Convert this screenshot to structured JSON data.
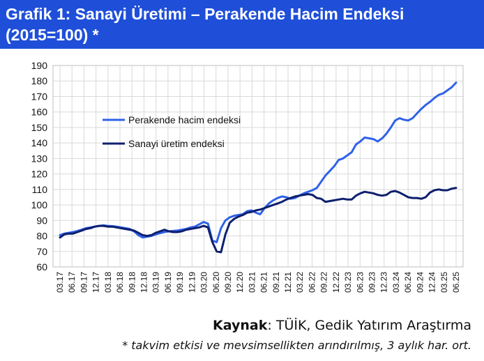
{
  "title": {
    "line1": "Grafik 1: Sanayi Üretimi – Perakende Hacim Endeksi",
    "line2": "(2015=100) *"
  },
  "source": {
    "label": "Kaynak",
    "text": ": TÜİK, Gedik Yatırım Araştırma"
  },
  "note": "* takvim etkisi ve mevsimsellikten arındırılmış, 3 aylık har. ort.",
  "colors": {
    "title_bg": "#1f4fd8",
    "retail": "#2f62e8",
    "industry": "#0d1f6e",
    "grid": "#d9d9d9"
  },
  "chart_data": {
    "type": "line",
    "ylim": [
      60,
      190
    ],
    "yticks": [
      60,
      70,
      80,
      90,
      100,
      110,
      120,
      130,
      140,
      150,
      160,
      170,
      180,
      190
    ],
    "grid": true,
    "legend_position": "upper-left inside plot",
    "x_tick_labels": [
      "03.17",
      "06.17",
      "09.17",
      "12.17",
      "03.18",
      "06.18",
      "09.18",
      "12.18",
      "03.19",
      "06.19",
      "09.19",
      "12.19",
      "03.20",
      "06.20",
      "09.20",
      "12.20",
      "03.21",
      "06.21",
      "09.21",
      "12.21",
      "03.22",
      "06.22",
      "09.22",
      "12.22",
      "03.23",
      "06.23",
      "09.23",
      "12.23",
      "03.24",
      "06.24",
      "09.24",
      "12.24",
      "03.25",
      "06.25"
    ],
    "series": [
      {
        "name": "Perakende hacim endeksi",
        "color": "#2f62e8",
        "values": [
          80.5,
          81.5,
          82.0,
          82.5,
          83.2,
          84.0,
          85.0,
          85.5,
          86.0,
          86.5,
          86.8,
          86.5,
          86.3,
          86.0,
          85.5,
          85.0,
          84.5,
          83.0,
          80.5,
          79.0,
          79.5,
          80.0,
          81.0,
          81.8,
          82.5,
          83.0,
          83.2,
          83.5,
          84.0,
          84.5,
          85.5,
          86.0,
          87.5,
          89.0,
          88.0,
          77.0,
          76.0,
          85.0,
          90.0,
          92.0,
          93.0,
          93.5,
          94.0,
          96.0,
          96.5,
          95.0,
          94.0,
          98.0,
          101.0,
          103.0,
          104.5,
          105.5,
          105.0,
          104.0,
          104.5,
          106.0,
          107.5,
          108.5,
          109.5,
          111.0,
          115.0,
          119.0,
          122.0,
          125.0,
          129.0,
          130.0,
          132.0,
          134.0,
          139.0,
          141.0,
          143.5,
          143.0,
          142.5,
          141.0,
          143.0,
          146.0,
          150.0,
          154.5,
          156.0,
          155.0,
          154.5,
          156.0,
          159.0,
          162.0,
          164.5,
          166.5,
          169.0,
          171.0,
          172.0,
          174.0,
          176.0,
          179.0
        ]
      },
      {
        "name": "Sanayi üretim endeksi",
        "color": "#0d1f6e",
        "values": [
          79.0,
          81.0,
          81.5,
          81.5,
          82.5,
          83.5,
          84.5,
          85.0,
          86.0,
          86.5,
          86.5,
          86.0,
          86.0,
          85.5,
          85.0,
          84.5,
          84.0,
          83.5,
          82.0,
          80.5,
          80.0,
          80.5,
          82.0,
          83.0,
          84.0,
          83.0,
          82.5,
          82.5,
          83.0,
          84.0,
          84.5,
          85.0,
          85.5,
          86.5,
          85.5,
          76.0,
          70.0,
          69.5,
          81.0,
          88.5,
          91.0,
          92.5,
          93.5,
          95.0,
          95.5,
          96.5,
          97.0,
          98.0,
          99.0,
          100.0,
          101.0,
          102.0,
          103.5,
          104.5,
          105.5,
          106.0,
          106.5,
          107.0,
          106.5,
          104.5,
          104.0,
          102.0,
          102.5,
          103.0,
          103.5,
          104.0,
          103.5,
          103.5,
          106.0,
          107.5,
          108.5,
          108.0,
          107.5,
          106.5,
          106.0,
          106.5,
          108.5,
          109.0,
          108.0,
          106.5,
          105.0,
          104.5,
          104.5,
          104.0,
          105.0,
          108.0,
          109.5,
          110.0,
          109.5,
          109.5,
          110.5,
          111.0
        ]
      }
    ]
  }
}
